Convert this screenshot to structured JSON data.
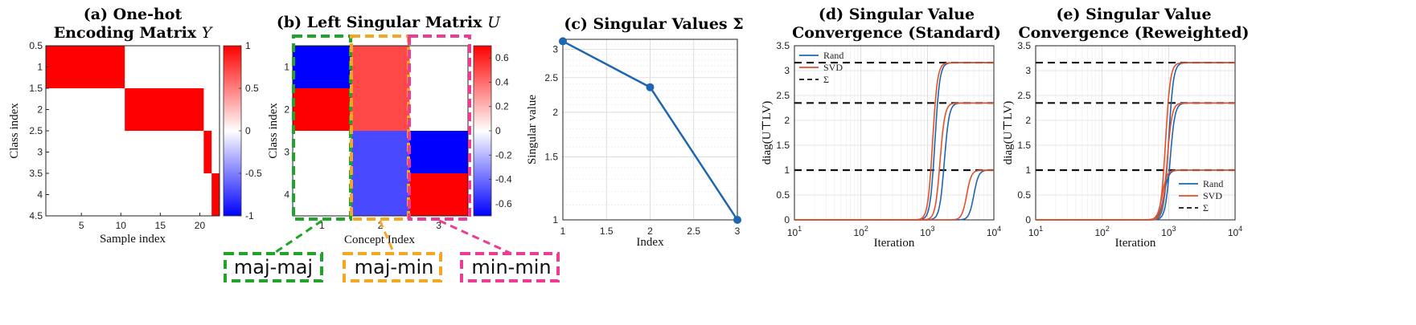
{
  "chart_data": [
    {
      "id": "a",
      "type": "heatmap",
      "title_lines": [
        "(a) One-hot",
        "Encoding Matrix Y"
      ],
      "title_emphasis": "Y",
      "xlabel": "Sample index",
      "ylabel": "Class index",
      "xlim": [
        0.5,
        22.5
      ],
      "ylim": [
        0.5,
        4.5
      ],
      "xticks": [
        5,
        10,
        15,
        20
      ],
      "yticks": [
        0.5,
        1,
        1.5,
        2,
        2.5,
        3,
        3.5,
        4,
        4.5
      ],
      "rows": 4,
      "cols": 22,
      "red_blocks": [
        {
          "row": 1,
          "cols": [
            1,
            10
          ]
        },
        {
          "row": 2,
          "cols": [
            11,
            20
          ]
        },
        {
          "row": 3,
          "cols": [
            21,
            21
          ]
        },
        {
          "row": 4,
          "cols": [
            22,
            22
          ]
        }
      ],
      "cell_value": 1,
      "colorbar": {
        "min": -1,
        "max": 1,
        "ticks": [
          "1",
          "0.5",
          "0",
          "-0.5",
          "-1"
        ]
      }
    },
    {
      "id": "b",
      "type": "heatmap",
      "title": "(b) Left Singular Matrix U",
      "title_emphasis": "U",
      "xlabel": "Concept Index",
      "ylabel": "Class index",
      "xticks": [
        1,
        2,
        3
      ],
      "yticks": [
        1,
        2,
        3,
        4
      ],
      "matrix": [
        [
          -0.7,
          0.5,
          0.0
        ],
        [
          0.7,
          0.5,
          0.0
        ],
        [
          0.0,
          -0.5,
          -0.7
        ],
        [
          0.0,
          -0.5,
          0.7
        ]
      ],
      "colorbar": {
        "min": -0.7,
        "max": 0.7,
        "ticks": [
          "0.6",
          "0.4",
          "0.2",
          "0",
          "-0.2",
          "-0.4",
          "-0.6"
        ]
      },
      "columns_highlight": [
        {
          "column": 1,
          "label": "maj-maj",
          "color": "#22a32a"
        },
        {
          "column": 2,
          "label": "maj-min",
          "color": "#f5a623"
        },
        {
          "column": 3,
          "label": "min-min",
          "color": "#ee3c93"
        }
      ]
    },
    {
      "id": "c",
      "type": "line",
      "title": "(c) Singular Values Σ",
      "xlabel": "Index",
      "ylabel": "Singular value",
      "x": [
        1,
        2,
        3
      ],
      "y": [
        3.16,
        2.35,
        1.0
      ],
      "xlim": [
        1,
        3
      ],
      "ylim": [
        1,
        3.2
      ],
      "yscale": "log",
      "xticks": [
        "1",
        "1.5",
        "2",
        "2.5",
        "3"
      ],
      "yticks": [
        "1",
        "1.5",
        "2",
        "2.5",
        "3"
      ],
      "grid": true,
      "color": "#1f66b0"
    },
    {
      "id": "d",
      "type": "line",
      "title_lines": [
        "(d) Singular Value",
        "Convergence (Standard)"
      ],
      "xlabel": "Iteration",
      "ylabel": "diag(U⊤LV)",
      "xscale": "log",
      "xlim": [
        10,
        10000
      ],
      "ylim": [
        0,
        3.5
      ],
      "xticks": [
        "10^1",
        "10^2",
        "10^3",
        "10^4"
      ],
      "yticks": [
        "0",
        "0.5",
        "1",
        "1.5",
        "2",
        "2.5",
        "3",
        "3.5"
      ],
      "grid": true,
      "legend": {
        "position": "top-left",
        "entries": [
          "Rand",
          "SVD",
          "Σ"
        ]
      },
      "reference_levels": [
        3.16,
        2.35,
        1.0
      ],
      "series": [
        {
          "name": "Rand",
          "color": "#1f66b0",
          "curves": [
            {
              "level": 3.16,
              "midpoint": 1300
            },
            {
              "level": 2.35,
              "midpoint": 1800
            },
            {
              "level": 1.0,
              "midpoint": 5000
            }
          ]
        },
        {
          "name": "SVD",
          "color": "#e1522a",
          "curves": [
            {
              "level": 3.16,
              "midpoint": 1200
            },
            {
              "level": 2.35,
              "midpoint": 1550
            },
            {
              "level": 1.0,
              "midpoint": 3900
            }
          ]
        }
      ]
    },
    {
      "id": "e",
      "type": "line",
      "title_lines": [
        "(e) Singular Value",
        "Convergence (Reweighted)"
      ],
      "xlabel": "Iteration",
      "ylabel": "diag(U⊤LV)",
      "xscale": "log",
      "xlim": [
        10,
        10000
      ],
      "ylim": [
        0,
        3.5
      ],
      "xticks": [
        "10^1",
        "10^2",
        "10^3",
        "10^4"
      ],
      "yticks": [
        "0",
        "0.5",
        "1",
        "1.5",
        "2",
        "2.5",
        "3",
        "3.5"
      ],
      "grid": true,
      "legend": {
        "position": "bottom-right",
        "entries": [
          "Rand",
          "SVD",
          "Σ"
        ]
      },
      "reference_levels": [
        3.16,
        2.35,
        1.0
      ],
      "series": [
        {
          "name": "Rand",
          "color": "#1f66b0",
          "curves": [
            {
              "level": 3.16,
              "midpoint": 1000
            },
            {
              "level": 2.35,
              "midpoint": 1050
            },
            {
              "level": 1.0,
              "midpoint": 850
            }
          ]
        },
        {
          "name": "SVD",
          "color": "#e1522a",
          "curves": [
            {
              "level": 3.16,
              "midpoint": 900
            },
            {
              "level": 2.35,
              "midpoint": 950
            },
            {
              "level": 1.0,
              "midpoint": 800
            }
          ]
        }
      ]
    }
  ]
}
